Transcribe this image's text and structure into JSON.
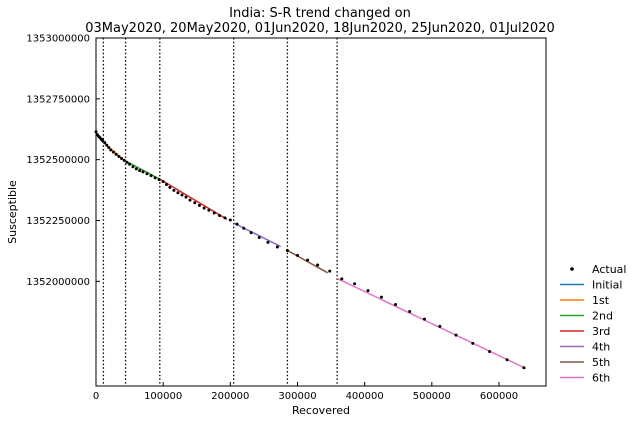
{
  "chart_data": {
    "type": "scatter",
    "title_line1": "India: S-R trend changed on",
    "title_line2": "03May2020, 20May2020, 01Jun2020, 18Jun2020, 25Jun2020, 01Jul2020",
    "xlabel": "Recovered",
    "ylabel": "Susceptible",
    "xlim": [
      0,
      670000
    ],
    "ylim": [
      1351570000,
      1353000000
    ],
    "x_ticks": [
      0,
      100000,
      200000,
      300000,
      400000,
      500000,
      600000
    ],
    "x_tick_labels": [
      "0",
      "100000",
      "200000",
      "300000",
      "400000",
      "500000",
      "600000"
    ],
    "y_ticks": [
      1353000000,
      1352750000,
      1352500000,
      1352250000,
      1352000000
    ],
    "y_tick_labels": [
      "1353000000",
      "1352750000",
      "1352500000",
      "1352250000",
      "1352000000"
    ],
    "change_points_x": [
      11000,
      44000,
      95000,
      205000,
      285000,
      359000
    ],
    "actual": {
      "name": "Actual",
      "color": "#000000",
      "x": [
        0,
        2000,
        4000,
        6000,
        8000,
        10000,
        13000,
        16000,
        19000,
        22000,
        26000,
        30000,
        34000,
        38000,
        42000,
        46000,
        50000,
        55000,
        60000,
        65000,
        70000,
        76000,
        82000,
        88000,
        94000,
        100000,
        105000,
        110000,
        116000,
        122000,
        128000,
        134000,
        140000,
        147000,
        154000,
        161000,
        168000,
        176000,
        184000,
        192000,
        200000,
        210000,
        220000,
        231000,
        243000,
        256000,
        270000,
        285000,
        300000,
        315000,
        330000,
        348000,
        366000,
        385000,
        405000,
        425000,
        446000,
        467000,
        489000,
        512000,
        536000,
        561000,
        586000,
        612000,
        637000
      ],
      "y": [
        1352615000,
        1352603000,
        1352596000,
        1352590000,
        1352584000,
        1352578000,
        1352570000,
        1352560000,
        1352550000,
        1352540000,
        1352531000,
        1352522000,
        1352513000,
        1352505000,
        1352497000,
        1352489000,
        1352481000,
        1352471000,
        1352462000,
        1352455000,
        1352450000,
        1352442000,
        1352434000,
        1352425000,
        1352418000,
        1352410000,
        1352398000,
        1352386000,
        1352374000,
        1352364000,
        1352355000,
        1352346000,
        1352334000,
        1352323000,
        1352312000,
        1352301000,
        1352292000,
        1352281000,
        1352270000,
        1352261000,
        1352252000,
        1352235000,
        1352218000,
        1352200000,
        1352180000,
        1352160000,
        1352141000,
        1352127000,
        1352107000,
        1352087000,
        1352067000,
        1352042000,
        1352010000,
        1351990000,
        1351962000,
        1351935000,
        1351905000,
        1351876000,
        1351845000,
        1351815000,
        1351779000,
        1351745000,
        1351712000,
        1351678000,
        1351645000
      ]
    },
    "series": [
      {
        "name": "Initial",
        "color": "#1f77b4",
        "x": [
          0,
          11000
        ],
        "y": [
          1352605000,
          1352570000
        ]
      },
      {
        "name": "1st",
        "color": "#ff7f0e",
        "x": [
          11000,
          44000
        ],
        "y": [
          1352570000,
          1352495000
        ]
      },
      {
        "name": "2nd",
        "color": "#2ca02c",
        "x": [
          44000,
          95000
        ],
        "y": [
          1352495000,
          1352420000
        ]
      },
      {
        "name": "3rd",
        "color": "#d62728",
        "x": [
          95000,
          195000
        ],
        "y": [
          1352420000,
          1352255000
        ]
      },
      {
        "name": "4th",
        "color": "#9467bd",
        "x": [
          205000,
          275000
        ],
        "y": [
          1352240000,
          1352143000
        ]
      },
      {
        "name": "5th",
        "color": "#8c564b",
        "x": [
          285000,
          345000
        ],
        "y": [
          1352127000,
          1352035000
        ]
      },
      {
        "name": "6th",
        "color": "#e377c2",
        "x": [
          359000,
          640000
        ],
        "y": [
          1352012000,
          1351642000
        ]
      }
    ],
    "legend_position": "right-outside-bottom",
    "grid": false
  }
}
